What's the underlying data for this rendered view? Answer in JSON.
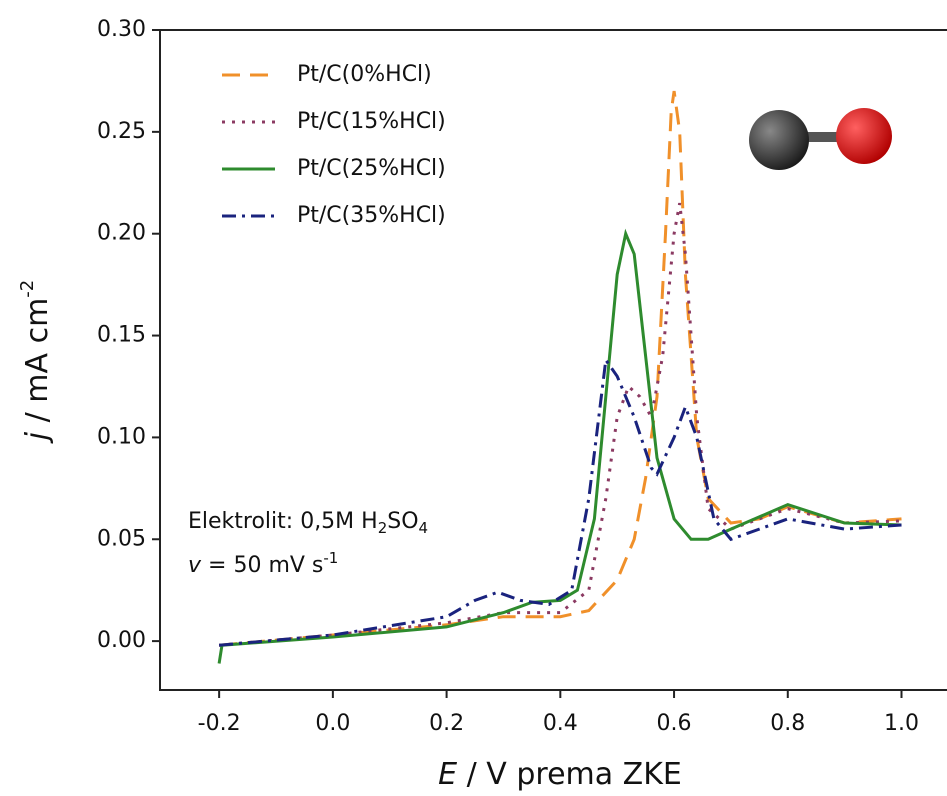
{
  "chart_data": {
    "type": "line",
    "xlabel": {
      "symbol": "E",
      "text": " / V prema ZKE"
    },
    "ylabel": {
      "symbol": "j",
      "text": " / mA cm",
      "sup": "-2"
    },
    "annotations": [
      {
        "parts": [
          "Elektrolit: 0,5M H",
          "2",
          "SO",
          "4"
        ]
      },
      {
        "parts": [
          "v",
          " = 50 mV s",
          "-1"
        ]
      }
    ],
    "xlim": [
      -0.304,
      1.08
    ],
    "ylim": [
      -0.024,
      0.3
    ],
    "xticks": [
      -0.2,
      {
        "value": 0,
        "label": "0.0"
      },
      0.2,
      0.4,
      0.6,
      0.8,
      {
        "value": 1,
        "label": "1.0"
      }
    ],
    "yticks": [
      {
        "value": 0,
        "label": "0.00"
      },
      0.05,
      {
        "value": 0.1,
        "label": "0.10"
      },
      0.15,
      {
        "value": 0.2,
        "label": "0.20"
      },
      0.25,
      {
        "value": 0.3,
        "label": "0.30"
      }
    ],
    "legend": "upper left",
    "series": [
      {
        "name": "Pt/C(0%HCl)",
        "color": "#f0902a",
        "dash": "dashed",
        "x": [
          -0.2,
          0.0,
          0.2,
          0.3,
          0.4,
          0.45,
          0.5,
          0.53,
          0.55,
          0.57,
          0.585,
          0.595,
          0.6,
          0.61,
          0.62,
          0.64,
          0.66,
          0.7,
          0.75,
          0.8,
          0.85,
          0.9,
          1.0
        ],
        "values": [
          -0.002,
          0.003,
          0.008,
          0.012,
          0.012,
          0.015,
          0.03,
          0.05,
          0.08,
          0.12,
          0.2,
          0.26,
          0.27,
          0.25,
          0.18,
          0.1,
          0.07,
          0.058,
          0.06,
          0.066,
          0.062,
          0.058,
          0.06
        ]
      },
      {
        "name": "Pt/C(15%HCl)",
        "color": "#8b3a62",
        "dash": "dotted",
        "x": [
          -0.2,
          0.0,
          0.2,
          0.3,
          0.4,
          0.45,
          0.48,
          0.5,
          0.52,
          0.54,
          0.56,
          0.58,
          0.6,
          0.61,
          0.62,
          0.64,
          0.66,
          0.7,
          0.8,
          0.9,
          1.0
        ],
        "values": [
          -0.002,
          0.003,
          0.009,
          0.014,
          0.014,
          0.025,
          0.07,
          0.11,
          0.125,
          0.12,
          0.11,
          0.14,
          0.2,
          0.215,
          0.19,
          0.11,
          0.065,
          0.055,
          0.065,
          0.058,
          0.059
        ]
      },
      {
        "name": "Pt/C(25%HCl)",
        "color": "#2e8b2e",
        "dash": "solid",
        "x": [
          -0.2,
          -0.195,
          0.0,
          0.2,
          0.3,
          0.35,
          0.4,
          0.43,
          0.46,
          0.48,
          0.5,
          0.515,
          0.53,
          0.55,
          0.57,
          0.6,
          0.63,
          0.66,
          0.7,
          0.8,
          0.9,
          1.0
        ],
        "values": [
          -0.011,
          -0.002,
          0.002,
          0.007,
          0.014,
          0.019,
          0.02,
          0.025,
          0.06,
          0.12,
          0.18,
          0.2,
          0.19,
          0.14,
          0.09,
          0.06,
          0.05,
          0.05,
          0.055,
          0.067,
          0.058,
          0.057
        ]
      },
      {
        "name": "Pt/C(35%HCl)",
        "color": "#1a237e",
        "dash": "dashdot",
        "x": [
          -0.2,
          0.0,
          0.2,
          0.25,
          0.29,
          0.33,
          0.38,
          0.42,
          0.45,
          0.48,
          0.5,
          0.53,
          0.56,
          0.57,
          0.6,
          0.62,
          0.64,
          0.67,
          0.7,
          0.8,
          0.9,
          1.0
        ],
        "values": [
          -0.002,
          0.003,
          0.012,
          0.02,
          0.024,
          0.02,
          0.018,
          0.025,
          0.07,
          0.138,
          0.13,
          0.11,
          0.085,
          0.082,
          0.1,
          0.115,
          0.1,
          0.06,
          0.05,
          0.06,
          0.055,
          0.057
        ]
      }
    ]
  }
}
